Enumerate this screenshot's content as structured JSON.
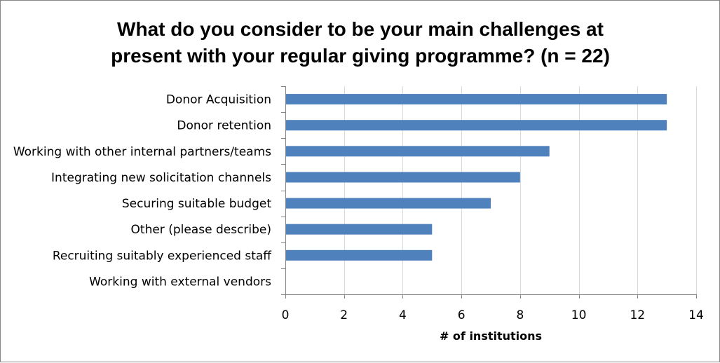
{
  "chart_data": {
    "type": "bar",
    "orientation": "horizontal",
    "title": "What do you consider to be your main challenges at present with your regular giving programme? (n = 22)",
    "title_lines": [
      "What do you consider to be your main challenges at",
      "present with your regular giving programme? (n = 22)"
    ],
    "categories": [
      "Donor Acquisition",
      "Donor retention",
      "Working with other internal partners/teams",
      "Integrating new solicitation channels",
      "Securing suitable budget",
      "Other (please describe)",
      "Recruiting suitably experienced staff",
      "Working with external vendors"
    ],
    "values": [
      13,
      13,
      9,
      8,
      7,
      5,
      5,
      0
    ],
    "xlabel": "# of institutions",
    "ylabel": "",
    "xlim": [
      0,
      14
    ],
    "xticks": [
      0,
      2,
      4,
      6,
      8,
      10,
      12,
      14
    ],
    "grid": "vertical",
    "legend": "none",
    "bar_color": "#4F81BD",
    "grid_color": "#D9D9D9",
    "axis_color": "#868686"
  }
}
